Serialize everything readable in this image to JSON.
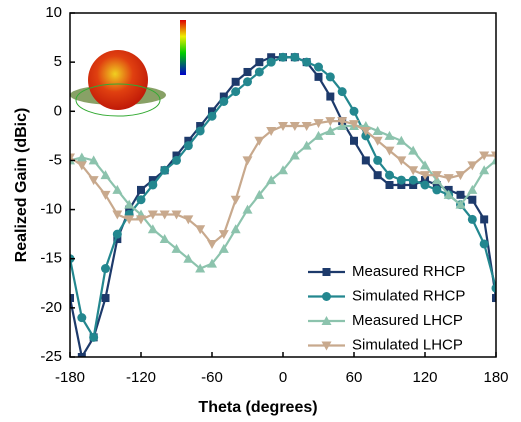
{
  "chart_data": {
    "type": "line",
    "xlabel": "Theta (degrees)",
    "ylabel": "Realized Gain (dBic)",
    "xlim": [
      -180,
      180
    ],
    "xticks": [
      -180,
      -120,
      -60,
      0,
      60,
      120,
      180
    ],
    "ylim": [
      -25,
      10
    ],
    "yticks": [
      -25,
      -20,
      -15,
      -10,
      -5,
      0,
      5,
      10
    ],
    "legend": "lower right",
    "x": [
      -180,
      -170,
      -160,
      -150,
      -140,
      -130,
      -120,
      -110,
      -100,
      -90,
      -80,
      -70,
      -60,
      -50,
      -40,
      -30,
      -20,
      -10,
      0,
      10,
      20,
      30,
      40,
      50,
      60,
      70,
      80,
      90,
      100,
      110,
      120,
      130,
      140,
      150,
      160,
      170,
      180
    ],
    "series": [
      {
        "name": "Measured RHCP",
        "color": "#1d3a6b",
        "marker": "square",
        "values": [
          -19,
          -25,
          -23,
          -19,
          -13,
          -10,
          -8,
          -7,
          -6,
          -4.5,
          -3,
          -1.5,
          0,
          1.5,
          3,
          4,
          5,
          5.5,
          5.5,
          5.5,
          5,
          3.5,
          1.5,
          -1,
          -3,
          -5,
          -6.5,
          -7.5,
          -7.5,
          -7.5,
          -7,
          -7.5,
          -8,
          -8.5,
          -9,
          -11,
          -19
        ]
      },
      {
        "name": "Simulated RHCP",
        "color": "#23878f",
        "marker": "circle",
        "values": [
          -15,
          -21,
          -23,
          -16,
          -12.5,
          -10.5,
          -9,
          -7.5,
          -6,
          -5,
          -3.5,
          -2,
          -0.5,
          1,
          2,
          3,
          4,
          5,
          5.5,
          5.5,
          5,
          4.5,
          3.5,
          2,
          0,
          -2.5,
          -5,
          -6.5,
          -7,
          -7,
          -7.5,
          -8,
          -8.5,
          -9.5,
          -11,
          -13.5,
          -18
        ]
      },
      {
        "name": "Measured LHCP",
        "color": "#8cc3ad",
        "marker": "triangle-up",
        "values": [
          -5,
          -4.7,
          -5,
          -6.5,
          -8,
          -9.5,
          -10.5,
          -12,
          -13,
          -14,
          -15,
          -16,
          -15.5,
          -14,
          -12,
          -10,
          -8.5,
          -7,
          -6,
          -4.5,
          -3.5,
          -2.5,
          -2,
          -1.5,
          -1.5,
          -1.5,
          -2,
          -2.5,
          -3,
          -4,
          -5.5,
          -7,
          -8.5,
          -9.5,
          -8,
          -6,
          -5
        ]
      },
      {
        "name": "Simulated LHCP",
        "color": "#c8a98d",
        "marker": "triangle-down",
        "values": [
          -4.7,
          -5.5,
          -7,
          -8.5,
          -10.5,
          -11,
          -11,
          -10.5,
          -10.5,
          -10.5,
          -11,
          -12,
          -13.5,
          -12.5,
          -9,
          -5,
          -3,
          -2,
          -1.5,
          -1.5,
          -1.5,
          -1.2,
          -1,
          -1,
          -1.3,
          -2,
          -3,
          -4,
          -5,
          -6,
          -6.5,
          -6.5,
          -6.8,
          -6.5,
          -5.5,
          -4.5,
          -4.5
        ]
      }
    ]
  }
}
